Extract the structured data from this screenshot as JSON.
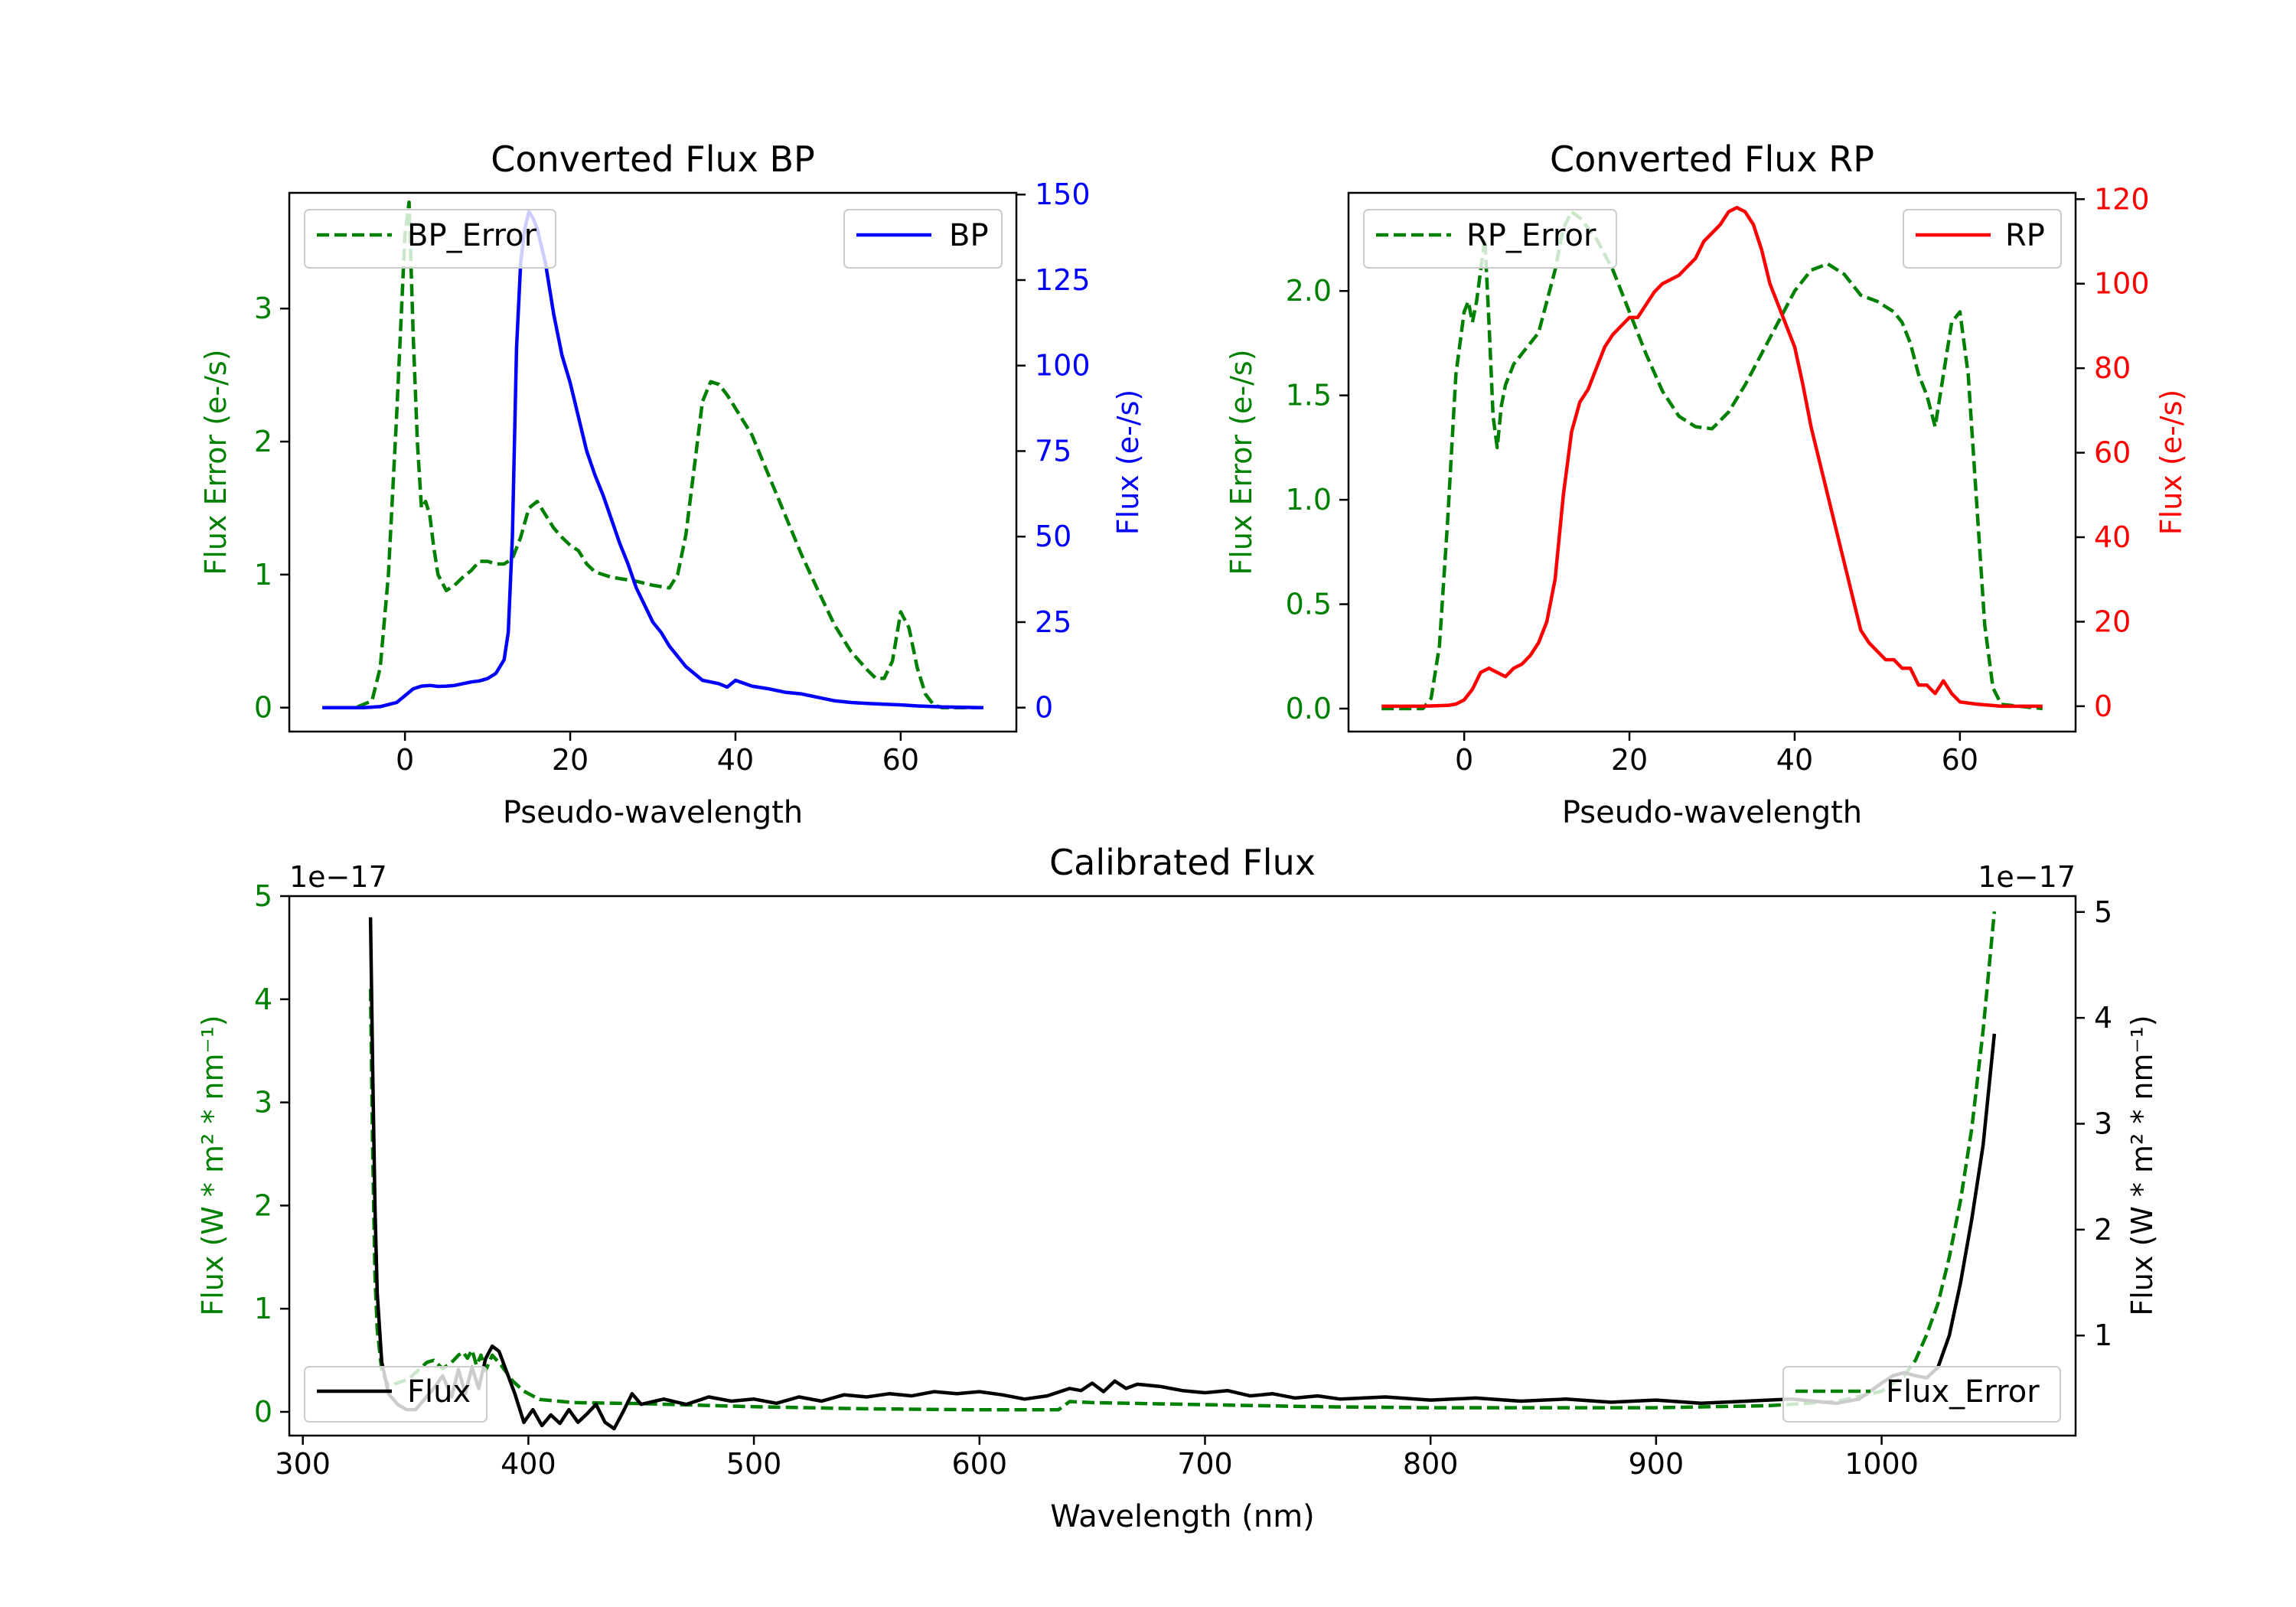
{
  "colors": {
    "bp": "#0000ff",
    "rp": "#ff0000",
    "error": "#008000",
    "flux": "#000000"
  },
  "chart_data": [
    {
      "id": "bp",
      "type": "line",
      "title": "Converted Flux BP",
      "xlabel": "Pseudo-wavelength",
      "ylabel_left": "Flux Error (e-/s)",
      "ylabel_right": "Flux (e-/s)",
      "xlim": [
        -14,
        74
      ],
      "ylim_left": [
        -0.18,
        3.87
      ],
      "ylim_right": [
        -7,
        150.5
      ],
      "xticks": [
        0,
        20,
        40,
        60
      ],
      "yticks_left": [
        0,
        1,
        2,
        3
      ],
      "yticks_right": [
        0,
        25,
        50,
        75,
        100,
        125,
        150
      ],
      "legend_left": "BP_Error",
      "legend_right": "BP",
      "series": [
        {
          "name": "BP_Error",
          "axis": "left",
          "style": "dashed",
          "x": [
            -10,
            -6,
            -4,
            -3,
            -2,
            -1,
            0,
            0.5,
            1,
            1.5,
            2,
            2.5,
            3,
            3.5,
            4,
            5,
            6,
            7,
            8,
            9,
            10,
            11,
            12,
            13,
            14,
            15,
            16,
            17,
            18,
            19,
            20,
            21,
            22,
            23,
            24,
            25,
            26,
            27,
            28,
            30,
            32,
            33,
            34,
            35,
            36,
            37,
            38,
            39,
            40,
            42,
            44,
            46,
            48,
            50,
            52,
            54,
            56,
            57,
            58,
            59,
            60,
            61,
            62,
            63,
            64,
            65,
            70
          ],
          "y": [
            0,
            0,
            0.05,
            0.3,
            1.0,
            2.2,
            3.55,
            3.8,
            2.8,
            2.0,
            1.5,
            1.55,
            1.45,
            1.2,
            1.0,
            0.88,
            0.92,
            0.98,
            1.03,
            1.1,
            1.1,
            1.08,
            1.08,
            1.12,
            1.28,
            1.5,
            1.55,
            1.45,
            1.35,
            1.28,
            1.22,
            1.18,
            1.08,
            1.02,
            1.0,
            0.98,
            0.97,
            0.96,
            0.95,
            0.92,
            0.9,
            1.0,
            1.3,
            1.8,
            2.3,
            2.45,
            2.43,
            2.35,
            2.25,
            2.05,
            1.75,
            1.45,
            1.15,
            0.88,
            0.62,
            0.42,
            0.28,
            0.22,
            0.22,
            0.35,
            0.72,
            0.6,
            0.3,
            0.1,
            0.02,
            0,
            0
          ]
        },
        {
          "name": "BP",
          "axis": "right",
          "style": "solid",
          "x": [
            -10,
            -5,
            -3,
            -1,
            0,
            1,
            2,
            3,
            4,
            5,
            6,
            7,
            8,
            9,
            10,
            11,
            12,
            12.5,
            13,
            13.5,
            14,
            14.5,
            15,
            15.5,
            16,
            17,
            18,
            19,
            20,
            21,
            22,
            23,
            24,
            25,
            26,
            27,
            28,
            29,
            30,
            31,
            32,
            33,
            34,
            35,
            36,
            37,
            38,
            39,
            40,
            42,
            44,
            46,
            48,
            50,
            52,
            54,
            56,
            58,
            60,
            62,
            65,
            70
          ],
          "y": [
            0,
            0,
            0.3,
            1.5,
            3.5,
            5.5,
            6.3,
            6.5,
            6.2,
            6.3,
            6.5,
            7,
            7.5,
            7.8,
            8.5,
            10,
            14,
            22,
            50,
            105,
            130,
            140,
            145,
            143,
            140,
            130,
            115,
            103,
            95,
            85,
            75,
            68,
            62,
            55,
            48,
            42,
            35,
            30,
            25,
            22,
            18,
            15,
            12,
            10,
            8,
            7.5,
            7,
            6,
            8,
            6.3,
            5.5,
            4.5,
            4,
            3,
            2,
            1.5,
            1.2,
            1,
            0.8,
            0.5,
            0.2,
            0
          ]
        }
      ]
    },
    {
      "id": "rp",
      "type": "line",
      "title": "Converted Flux RP",
      "xlabel": "Pseudo-wavelength",
      "ylabel_left": "Flux Error (e-/s)",
      "ylabel_right": "Flux (e-/s)",
      "xlim": [
        -14,
        74
      ],
      "ylim_left": [
        -0.11,
        2.47
      ],
      "ylim_right": [
        -6,
        121.5
      ],
      "xticks": [
        0,
        20,
        40,
        60
      ],
      "yticks_left": [
        0.0,
        0.5,
        1.0,
        1.5,
        2.0
      ],
      "yticks_right": [
        0,
        20,
        40,
        60,
        80,
        100,
        120
      ],
      "legend_left": "RP_Error",
      "legend_right": "RP",
      "series": [
        {
          "name": "RP_Error",
          "axis": "left",
          "style": "dashed",
          "x": [
            -10,
            -5,
            -4,
            -3,
            -2,
            -1,
            0,
            0.5,
            1,
            1.5,
            2,
            2.5,
            3,
            3.5,
            4,
            4.5,
            5,
            6,
            7,
            8,
            9,
            10,
            11,
            12,
            13,
            14,
            16,
            18,
            20,
            22,
            24,
            26,
            28,
            30,
            32,
            34,
            36,
            38,
            40,
            42,
            44,
            46,
            48,
            50,
            52,
            53,
            54,
            55,
            56,
            57,
            58,
            59,
            60,
            61,
            62,
            63,
            64,
            65,
            70
          ],
          "y": [
            0,
            0,
            0.05,
            0.3,
            0.9,
            1.6,
            1.9,
            1.95,
            1.85,
            1.95,
            2.1,
            2.25,
            1.85,
            1.4,
            1.25,
            1.45,
            1.55,
            1.65,
            1.7,
            1.75,
            1.8,
            1.95,
            2.1,
            2.3,
            2.38,
            2.35,
            2.25,
            2.1,
            1.9,
            1.7,
            1.52,
            1.4,
            1.35,
            1.34,
            1.42,
            1.55,
            1.7,
            1.85,
            2.0,
            2.1,
            2.13,
            2.08,
            1.98,
            1.95,
            1.9,
            1.85,
            1.75,
            1.6,
            1.5,
            1.35,
            1.6,
            1.85,
            1.9,
            1.6,
            1.0,
            0.4,
            0.1,
            0.02,
            0
          ]
        },
        {
          "name": "RP",
          "axis": "right",
          "style": "solid",
          "x": [
            -10,
            -5,
            -2,
            -1,
            0,
            1,
            1.5,
            2,
            3,
            4,
            5,
            6,
            7,
            8,
            9,
            10,
            11,
            12,
            13,
            14,
            15,
            16,
            17,
            18,
            19,
            20,
            21,
            22,
            23,
            24,
            25,
            26,
            27,
            28,
            29,
            30,
            31,
            32,
            33,
            34,
            35,
            36,
            37,
            38,
            39,
            40,
            41,
            42,
            43,
            44,
            45,
            46,
            47,
            48,
            49,
            50,
            51,
            52,
            53,
            54,
            55,
            56,
            57,
            58,
            59,
            60,
            62,
            65,
            70
          ],
          "y": [
            0,
            0,
            0.2,
            0.5,
            1.5,
            4,
            6,
            8,
            9,
            8,
            7,
            9,
            10,
            12,
            15,
            20,
            30,
            50,
            65,
            72,
            75,
            80,
            85,
            88,
            90,
            92,
            92,
            95,
            98,
            100,
            101,
            102,
            104,
            106,
            110,
            112,
            114,
            117,
            118,
            117,
            114,
            108,
            100,
            95,
            90,
            85,
            76,
            66,
            58,
            50,
            42,
            34,
            26,
            18,
            15,
            13,
            11,
            11,
            9,
            9,
            5,
            5,
            3,
            6,
            3,
            1,
            0.5,
            0,
            0
          ]
        }
      ]
    },
    {
      "id": "calibrated",
      "type": "line",
      "title": "Calibrated Flux",
      "xlabel": "Wavelength (nm)",
      "ylabel_left": "Flux (W * m² * nm⁻¹)",
      "ylabel_right": "Flux (W * m² * nm⁻¹)",
      "offset_left": "1e−17",
      "offset_right": "1e−17",
      "xlim": [
        294,
        1086
      ],
      "ylim_left": [
        -0.23,
        5.0
      ],
      "ylim_right": [
        0.055,
        5.15
      ],
      "xticks": [
        300,
        400,
        500,
        600,
        700,
        800,
        900,
        1000
      ],
      "yticks_left": [
        0,
        1,
        2,
        3,
        4,
        5
      ],
      "yticks_right": [
        1,
        2,
        3,
        4,
        5
      ],
      "legend_left": "Flux",
      "legend_right": "Flux_Error",
      "series": [
        {
          "name": "Flux_Error",
          "axis": "left",
          "style": "dashed",
          "x": [
            330,
            331,
            332,
            333,
            335,
            338,
            342,
            347,
            352,
            355,
            358,
            362,
            366,
            369,
            371,
            373,
            375,
            377,
            379,
            381,
            384,
            388,
            393,
            398,
            405,
            420,
            450,
            500,
            550,
            600,
            620,
            635,
            640,
            650,
            700,
            750,
            800,
            850,
            900,
            950,
            980,
            1000,
            1010,
            1015,
            1020,
            1025,
            1030,
            1035,
            1040,
            1045,
            1050
          ],
          "y": [
            4.1,
            2.5,
            1.3,
            0.8,
            0.4,
            0.25,
            0.28,
            0.32,
            0.42,
            0.48,
            0.5,
            0.42,
            0.48,
            0.55,
            0.58,
            0.52,
            0.6,
            0.45,
            0.55,
            0.4,
            0.55,
            0.45,
            0.3,
            0.2,
            0.12,
            0.09,
            0.08,
            0.05,
            0.03,
            0.02,
            0.02,
            0.02,
            0.1,
            0.09,
            0.07,
            0.05,
            0.04,
            0.04,
            0.04,
            0.06,
            0.1,
            0.2,
            0.35,
            0.5,
            0.75,
            1.05,
            1.5,
            2.05,
            2.75,
            3.7,
            4.85
          ]
        },
        {
          "name": "Flux",
          "axis": "right",
          "style": "solid",
          "x": [
            330,
            331,
            332,
            333,
            335,
            338,
            342,
            346,
            350,
            354,
            358,
            362,
            366,
            369,
            372,
            375,
            378,
            381,
            384,
            387,
            390,
            394,
            398,
            402,
            406,
            410,
            414,
            418,
            422,
            426,
            430,
            434,
            438,
            442,
            446,
            450,
            460,
            470,
            480,
            490,
            500,
            510,
            520,
            530,
            540,
            550,
            560,
            570,
            580,
            590,
            600,
            610,
            620,
            630,
            640,
            645,
            650,
            655,
            660,
            665,
            670,
            680,
            690,
            700,
            710,
            720,
            730,
            740,
            750,
            760,
            780,
            800,
            820,
            840,
            860,
            880,
            900,
            920,
            940,
            960,
            980,
            990,
            1000,
            1005,
            1010,
            1015,
            1020,
            1025,
            1030,
            1035,
            1040,
            1045,
            1050
          ],
          "y": [
            4.95,
            3.5,
            2.2,
            1.4,
            0.75,
            0.45,
            0.35,
            0.3,
            0.3,
            0.4,
            0.5,
            0.62,
            0.42,
            0.68,
            0.45,
            0.7,
            0.5,
            0.78,
            0.9,
            0.85,
            0.68,
            0.45,
            0.18,
            0.3,
            0.15,
            0.25,
            0.17,
            0.3,
            0.18,
            0.26,
            0.35,
            0.18,
            0.12,
            0.28,
            0.45,
            0.35,
            0.4,
            0.35,
            0.42,
            0.38,
            0.4,
            0.36,
            0.42,
            0.38,
            0.44,
            0.42,
            0.45,
            0.43,
            0.47,
            0.45,
            0.47,
            0.44,
            0.4,
            0.43,
            0.5,
            0.48,
            0.55,
            0.47,
            0.57,
            0.5,
            0.54,
            0.52,
            0.48,
            0.46,
            0.48,
            0.43,
            0.45,
            0.41,
            0.43,
            0.4,
            0.42,
            0.39,
            0.41,
            0.38,
            0.4,
            0.37,
            0.39,
            0.36,
            0.38,
            0.4,
            0.36,
            0.4,
            0.55,
            0.62,
            0.65,
            0.62,
            0.6,
            0.7,
            1.0,
            1.5,
            2.1,
            2.8,
            3.85
          ]
        }
      ]
    }
  ]
}
